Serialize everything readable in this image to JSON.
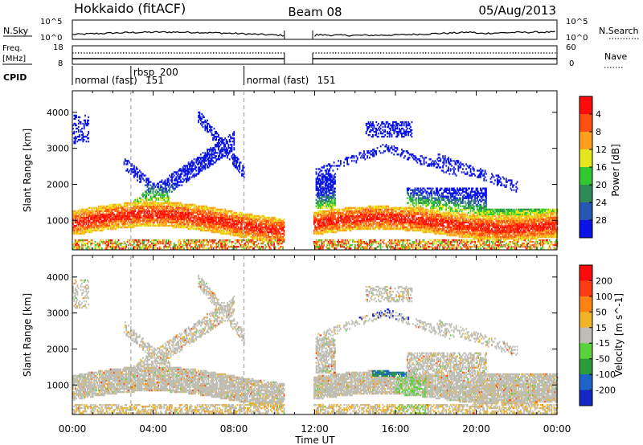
{
  "header": {
    "title_left": "Hokkaido (fitACF)",
    "title_center": "Beam 08",
    "title_right": "05/Aug/2013"
  },
  "top_panels": {
    "nsky_label": "N.Sky",
    "nsearch_label": "N.Search",
    "nsky_ticks": [
      "10^5",
      "10^0"
    ],
    "freq_label": "Freq.",
    "freq_unit": "[MHz]",
    "freq_ticks": [
      "18",
      "8"
    ],
    "nave_label": "Nave",
    "nave_ticks": [
      "60",
      "0"
    ],
    "cpid_label": "CPID",
    "cpid_segments": [
      {
        "label": "normal (fast)",
        "id": "151",
        "start_h": 0
      },
      {
        "label": "rbsp",
        "id": "200",
        "start_h": 2.9
      },
      {
        "label": "normal (fast)",
        "id": "151",
        "start_h": 8.5
      }
    ]
  },
  "chart_data": [
    {
      "type": "heatmap",
      "name": "power",
      "ylabel": "Slant Range [km]",
      "xlabel": "",
      "xlim": [
        0,
        24
      ],
      "ylim": [
        180,
        4600
      ],
      "x_ticks": [
        "00:00",
        "04:00",
        "08:00",
        "12:00",
        "16:00",
        "20:00",
        "00:00"
      ],
      "y_ticks": [
        1000,
        2000,
        3000,
        4000
      ],
      "data_gap_h": [
        10.5,
        11.9
      ],
      "colorbar": {
        "label": "Power [dB]",
        "ticks": [
          "4",
          "8",
          "12",
          "16",
          "20",
          "24",
          "28"
        ],
        "colors": [
          "#0a14e6",
          "#2856b4",
          "#2e8b57",
          "#32c832",
          "#e6e61e",
          "#ffa01e",
          "#ff5014",
          "#ff0a0a"
        ]
      }
    },
    {
      "type": "heatmap",
      "name": "velocity",
      "ylabel": "Slant Range [km]",
      "xlabel": "Time UT",
      "xlim": [
        0,
        24
      ],
      "ylim": [
        180,
        4600
      ],
      "x_ticks": [
        "00:00",
        "04:00",
        "08:00",
        "12:00",
        "16:00",
        "20:00",
        "00:00"
      ],
      "y_ticks": [
        1000,
        2000,
        3000,
        4000
      ],
      "data_gap_h": [
        10.5,
        11.9
      ],
      "colorbar": {
        "label": "Velocity [m s^-1]",
        "ticks": [
          "200",
          "100",
          "50",
          "15",
          "-15",
          "-50",
          "-100",
          "-200"
        ],
        "colors": [
          "#1428c8",
          "#1e64c8",
          "#2a9a3a",
          "#5ad23c",
          "#bebeb4",
          "#f0b428",
          "#ff8214",
          "#ff3c14",
          "#ff0a0a"
        ]
      }
    }
  ]
}
